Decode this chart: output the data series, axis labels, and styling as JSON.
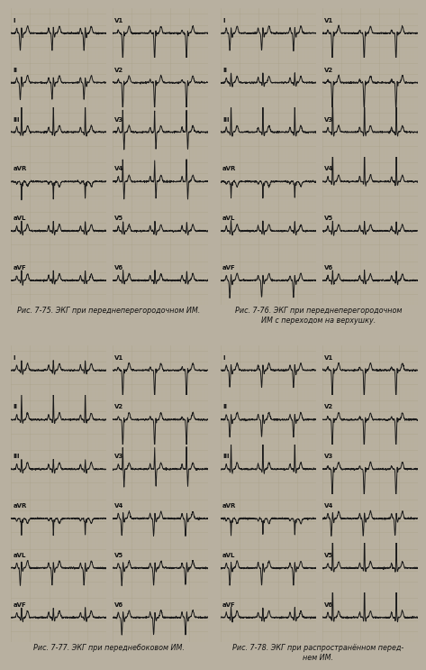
{
  "background_color": "#b8b0a0",
  "strip_bg": "#d8d0bc",
  "grid_minor_color": "#b8b098",
  "grid_major_color": "#a8a088",
  "ecg_line_color": "#1a1a1a",
  "text_color": "#111111",
  "caption_fontsize": 5.8,
  "label_fontsize": 5.0,
  "captions": [
    "Рис. 7-75. ЭКГ при переднеперегородочном ИМ.",
    "Рис. 7-76. ЭКГ при переднеперегородочном\nИМ с переходом на верхушку.",
    "Рис. 7-77. ЭКГ при переднебоковом ИМ.",
    "Рис. 7-78. ЭКГ при распространённом перед-\nнем ИМ."
  ],
  "lead_labels_left": [
    "I",
    "II",
    "III",
    "aVR",
    "aVL",
    "aVF"
  ],
  "lead_labels_right": [
    "V1",
    "V2",
    "V3",
    "V4",
    "V5",
    "V6"
  ],
  "fig_width": 4.63,
  "fig_height": 7.46
}
